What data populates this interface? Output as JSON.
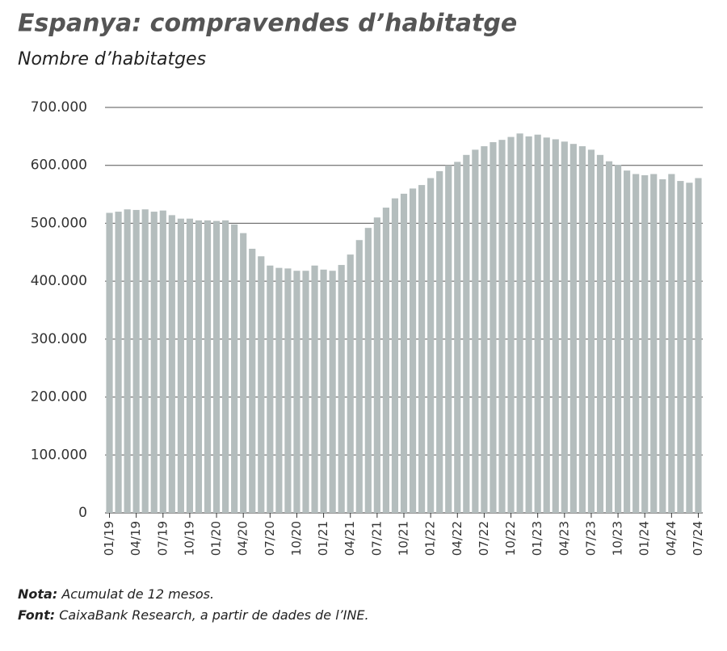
{
  "chart_data": {
    "type": "bar",
    "title": "Espanya: compravendes d’habitatge",
    "subtitle": "Nombre d’habitatges",
    "categories": [
      "01/19",
      null,
      null,
      "04/19",
      null,
      null,
      "07/19",
      null,
      null,
      "10/19",
      null,
      null,
      "01/20",
      null,
      null,
      "04/20",
      null,
      null,
      "07/20",
      null,
      null,
      "10/20",
      null,
      null,
      "01/21",
      null,
      null,
      "04/21",
      null,
      null,
      "07/21",
      null,
      null,
      "10/21",
      null,
      null,
      "01/22",
      null,
      null,
      "04/22",
      null,
      null,
      "07/22",
      null,
      null,
      "10/22",
      null,
      null,
      "01/23",
      null,
      null,
      "04/23",
      null,
      null,
      "07/23",
      null,
      null,
      "10/23",
      null,
      null,
      "01/24",
      null,
      null,
      "04/24",
      null,
      null,
      "07/24"
    ],
    "values": [
      518000,
      520000,
      524000,
      523000,
      524000,
      520000,
      522000,
      514000,
      508000,
      508000,
      505000,
      505000,
      504000,
      505000,
      498000,
      483000,
      456000,
      443000,
      427000,
      423000,
      422000,
      418000,
      418000,
      427000,
      420000,
      418000,
      428000,
      446000,
      471000,
      492000,
      510000,
      527000,
      543000,
      551000,
      560000,
      566000,
      578000,
      590000,
      600000,
      606000,
      618000,
      627000,
      633000,
      640000,
      644000,
      649000,
      655000,
      650000,
      653000,
      648000,
      645000,
      641000,
      637000,
      633000,
      627000,
      618000,
      607000,
      601000,
      591000,
      585000,
      583000,
      585000,
      576000,
      585000,
      573000,
      570000,
      578000
    ],
    "color": "#b4bdbd",
    "ylim": [
      0,
      700000
    ],
    "yticks": [
      0,
      {
        "value": 100000,
        "label": "100.000"
      },
      {
        "value": 200000,
        "label": "200.000"
      },
      {
        "value": 300000,
        "label": "300.000"
      },
      {
        "value": 400000,
        "label": "400.000"
      },
      {
        "value": 500000,
        "label": "500.000"
      },
      {
        "value": 600000,
        "label": "600.000"
      },
      {
        "value": 700000,
        "label": "700.000"
      }
    ],
    "grid": true,
    "notes": [
      {
        "label": "Nota:",
        "text": "Acumulat de 12 mesos."
      },
      {
        "label": "Font:",
        "text": "CaixaBank Research, a partir de dades de l’INE."
      }
    ]
  }
}
